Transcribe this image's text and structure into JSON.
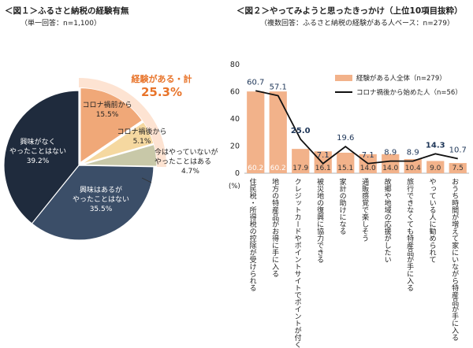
{
  "chart_data": [
    {
      "type": "pie",
      "title": "＜図１＞ふるさと納税の経験有無",
      "subtitle": "（単一回答：n=1,100）",
      "callout": {
        "label": "経験がある・計",
        "value": "25.3%"
      },
      "slices": [
        {
          "label": "コロナ禍前から",
          "value": 15.5,
          "display": "15.5%",
          "color": "#f0a878"
        },
        {
          "label": "コロナ禍後から",
          "value": 5.1,
          "display": "5.1%",
          "color": "#f5d8a0"
        },
        {
          "label": "今はやっていないがやったことはある",
          "value": 4.7,
          "display": "4.7%",
          "color": "#c8c8a8"
        },
        {
          "label": "興味はあるがやったことはない",
          "value": 35.5,
          "display": "35.5%",
          "color": "#3b4e68"
        },
        {
          "label": "興味がなくやったことはない",
          "value": 39.2,
          "display": "39.2%",
          "color": "#1f2b3d"
        }
      ]
    },
    {
      "type": "bar",
      "title": "＜図２＞やってみようと思ったきっかけ（上位10項目抜粋）",
      "subtitle": "（複数回答：ふるさと納税の経験がある人ベース：n=279）",
      "ylabel": "(%)",
      "ylim": [
        0,
        80
      ],
      "yticks": [
        0,
        20,
        40,
        60,
        80
      ],
      "categories": [
        "住民税・所得税の控除が受けられる",
        "地方の特産品がお得に手に入る",
        "クレジットカードやポイントサイトでポイントが付く",
        "被災地の復興に協力できる",
        "家計の助けになる",
        "通販感覚で楽しそう",
        "故郷や地域の応援がしたい",
        "旅行できなくても特産品が手に入る",
        "やっている人に勧められて",
        "おうち時間が増えて家にいながら特産品が手に入る"
      ],
      "series": [
        {
          "name": "経験がある人全体（n=279）",
          "type": "bar",
          "color": "#f2b28a",
          "values": [
            60.2,
            60.2,
            17.9,
            16.1,
            15.1,
            14.0,
            14.0,
            10.4,
            9.0,
            7.5
          ],
          "labels": [
            "60.2",
            "60.2",
            "17.9",
            "16.1",
            "15.1",
            "14.0",
            "14.0",
            "10.4",
            "9.0",
            "7.5"
          ]
        },
        {
          "name": "コロナ禍後から始めた人（n=56）",
          "type": "line",
          "color": "#111111",
          "values": [
            60.7,
            57.1,
            25.0,
            7.1,
            19.6,
            7.1,
            8.9,
            8.9,
            14.3,
            10.7
          ],
          "labels": [
            "60.7",
            "57.1",
            "25.0",
            "7.1",
            "19.6",
            "7.1",
            "8.9",
            "8.9",
            "14.3",
            "10.7"
          ],
          "bold": [
            false,
            false,
            true,
            false,
            false,
            false,
            false,
            false,
            true,
            false
          ]
        }
      ],
      "legend": "top-right"
    }
  ]
}
